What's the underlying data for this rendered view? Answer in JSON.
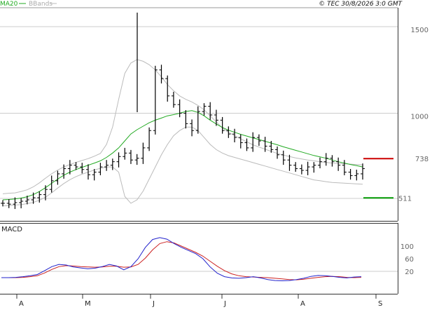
{
  "header": {
    "legend_ma": "MA20",
    "legend_bb": "BBands",
    "copyright": "© TEC 30/8/2026 3:0 GMT"
  },
  "colors": {
    "ma": "#22aa22",
    "bands": "#bbbbbb",
    "price": "#000000",
    "macd": "#2222cc",
    "signal": "#cc2222",
    "resistance": "#cc0000",
    "support": "#009900",
    "grid": "#cccccc"
  },
  "chart_data": [
    {
      "type": "line",
      "title": "",
      "ylim": [
        500,
        1620
      ],
      "y_ticks": [
        "1500",
        "1000"
      ],
      "x_ticks": [
        "A",
        "M",
        "J",
        "J",
        "A",
        "S"
      ],
      "levels": [
        {
          "label": "738",
          "value": 738,
          "color": "#cc0000"
        },
        {
          "label": "511",
          "value": 511,
          "color": "#009900"
        }
      ],
      "series": [
        {
          "name": "MA20",
          "values": [
            500,
            502,
            505,
            510,
            518,
            530,
            548,
            570,
            595,
            620,
            642,
            660,
            675,
            688,
            700,
            712,
            725,
            745,
            770,
            800,
            840,
            880,
            905,
            925,
            945,
            960,
            972,
            985,
            992,
            1000,
            1010,
            1015,
            1005,
            985,
            960,
            938,
            918,
            902,
            890,
            878,
            868,
            858,
            848,
            838,
            828,
            818,
            806,
            796,
            786,
            776,
            766,
            756,
            748,
            740,
            730,
            720,
            712,
            704,
            697,
            690
          ]
        },
        {
          "name": "BBands upper",
          "values": [
            535,
            538,
            540,
            548,
            558,
            575,
            598,
            625,
            650,
            672,
            690,
            704,
            716,
            727,
            738,
            752,
            768,
            820,
            920,
            1080,
            1230,
            1290,
            1310,
            1300,
            1280,
            1250,
            1210,
            1165,
            1130,
            1100,
            1080,
            1065,
            1045,
            1020,
            985,
            950,
            915,
            890,
            870,
            852,
            835,
            818,
            805,
            792,
            780,
            768,
            758,
            750,
            742,
            736,
            730,
            725,
            720,
            716,
            712,
            710,
            708,
            706,
            704,
            702
          ]
        },
        {
          "name": "BBands lower",
          "values": [
            465,
            466,
            470,
            472,
            478,
            485,
            498,
            515,
            540,
            568,
            594,
            616,
            634,
            648,
            660,
            672,
            682,
            690,
            690,
            660,
            520,
            480,
            500,
            550,
            620,
            690,
            760,
            820,
            870,
            900,
            920,
            920,
            900,
            860,
            820,
            790,
            770,
            755,
            745,
            735,
            725,
            715,
            705,
            695,
            685,
            675,
            665,
            655,
            645,
            635,
            625,
            615,
            610,
            605,
            600,
            598,
            596,
            594,
            592,
            590
          ]
        },
        {
          "name": "Close",
          "values": [
            480,
            475,
            484,
            492,
            500,
            512,
            530,
            560,
            610,
            650,
            680,
            700,
            690,
            675,
            645,
            660,
            690,
            700,
            720,
            750,
            770,
            730,
            740,
            800,
            900,
            1250,
            1200,
            1100,
            1050,
            1000,
            940,
            900,
            1010,
            1040,
            990,
            960,
            900,
            880,
            860,
            830,
            800,
            860,
            840,
            810,
            790,
            760,
            730,
            700,
            680,
            670,
            690,
            700,
            720,
            740,
            720,
            700,
            660,
            640,
            650,
            680
          ]
        }
      ]
    },
    {
      "type": "line",
      "title": "MACD",
      "ylim": [
        -20,
        140
      ],
      "y_ticks": [
        "100",
        "60",
        "20"
      ],
      "series": [
        {
          "name": "MACD",
          "values": [
            0,
            0,
            1,
            3,
            6,
            10,
            22,
            35,
            42,
            40,
            34,
            31,
            28,
            30,
            35,
            42,
            37,
            25,
            35,
            60,
            96,
            121,
            127,
            122,
            108,
            96,
            86,
            76,
            60,
            34,
            14,
            3,
            -1,
            -2,
            0,
            3,
            -1,
            -6,
            -9,
            -10,
            -9,
            -6,
            -2,
            4,
            7,
            6,
            4,
            1,
            -1,
            2,
            3
          ]
        },
        {
          "name": "Signal",
          "values": [
            0,
            0,
            0,
            1,
            3,
            6,
            15,
            26,
            35,
            38,
            37,
            35,
            34,
            33,
            34,
            36,
            36,
            33,
            34,
            42,
            62,
            88,
            108,
            114,
            110,
            100,
            90,
            80,
            68,
            52,
            36,
            22,
            12,
            6,
            3,
            2,
            1,
            0,
            -2,
            -4,
            -6,
            -7,
            -5,
            -2,
            1,
            3,
            4,
            3,
            1,
            0,
            1
          ]
        }
      ]
    }
  ]
}
